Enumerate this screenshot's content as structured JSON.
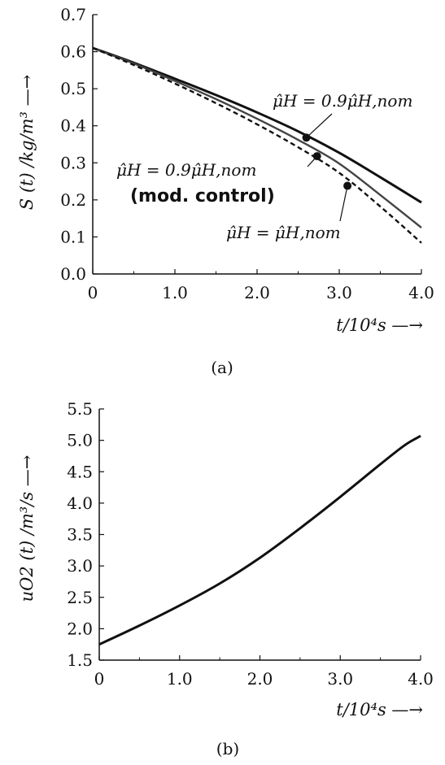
{
  "chart_data": [
    {
      "type": "line",
      "caption": "(a)",
      "ylabel": "S (t) /kg/m³ —→",
      "xlabel": "t/10⁴s —→",
      "xlim": [
        0,
        4.0
      ],
      "ylim": [
        0,
        0.7
      ],
      "x_ticks": [
        "0",
        "1.0",
        "2.0",
        "3.0",
        "4.0"
      ],
      "x_tick_values": [
        0,
        1.0,
        2.0,
        3.0,
        4.0
      ],
      "y_ticks": [
        "0.0",
        "0.1",
        "0.2",
        "0.3",
        "0.4",
        "0.5",
        "0.6",
        "0.7"
      ],
      "y_tick_values": [
        0.0,
        0.1,
        0.2,
        0.3,
        0.4,
        0.5,
        0.6,
        0.7
      ],
      "grid": false,
      "series": [
        {
          "style": "solid-thick",
          "color": "#111111",
          "x": [
            0,
            0.5,
            1.0,
            1.5,
            2.0,
            2.5,
            3.0,
            3.5,
            4.0
          ],
          "y": [
            0.61,
            0.57,
            0.527,
            0.483,
            0.436,
            0.385,
            0.327,
            0.261,
            0.193
          ]
        },
        {
          "style": "solid-gray",
          "color": "#444444",
          "x": [
            0,
            0.5,
            1.0,
            1.5,
            2.0,
            2.5,
            3.0,
            3.5,
            4.0
          ],
          "y": [
            0.61,
            0.568,
            0.521,
            0.472,
            0.419,
            0.362,
            0.298,
            0.213,
            0.125
          ]
        },
        {
          "style": "dashed",
          "color": "#111111",
          "x": [
            0,
            0.5,
            1.0,
            1.5,
            2.0,
            2.5,
            3.0,
            3.5,
            4.0
          ],
          "y": [
            0.61,
            0.564,
            0.514,
            0.461,
            0.404,
            0.342,
            0.273,
            0.182,
            0.084
          ]
        }
      ],
      "markers": [
        {
          "x": 2.6,
          "y": 0.368
        },
        {
          "x": 2.73,
          "y": 0.318
        },
        {
          "x": 3.1,
          "y": 0.238
        }
      ],
      "annotations": [
        {
          "text": "μ̂H = 0.9μ̂H,nom",
          "target": {
            "x": 2.6,
            "y": 0.368
          }
        },
        {
          "text": "μ̂H = 0.9μ̂H,nom",
          "text2": "(mod. control)",
          "target": {
            "x": 2.73,
            "y": 0.318
          }
        },
        {
          "text": "μ̂H = μ̂H,nom",
          "target": {
            "x": 3.1,
            "y": 0.238
          }
        }
      ]
    },
    {
      "type": "line",
      "caption": "(b)",
      "ylabel": "uO2 (t) /m³/s —→",
      "xlabel": "t/10⁴s —→",
      "xlim": [
        0,
        4.0
      ],
      "ylim": [
        1.5,
        5.5
      ],
      "x_ticks": [
        "0",
        "1.0",
        "2.0",
        "3.0",
        "4.0"
      ],
      "x_tick_values": [
        0,
        1.0,
        2.0,
        3.0,
        4.0
      ],
      "y_ticks": [
        "1.5",
        "2.0",
        "2.5",
        "3.0",
        "3.5",
        "4.0",
        "4.5",
        "5.0",
        "5.5"
      ],
      "y_tick_values": [
        1.5,
        2.0,
        2.5,
        3.0,
        3.5,
        4.0,
        4.5,
        5.0,
        5.5
      ],
      "grid": false,
      "series": [
        {
          "style": "solid-thick",
          "color": "#111111",
          "x": [
            0,
            0.5,
            1.0,
            1.5,
            2.0,
            2.5,
            3.0,
            3.5,
            3.8,
            4.0
          ],
          "y": [
            1.75,
            2.05,
            2.37,
            2.72,
            3.13,
            3.6,
            4.1,
            4.62,
            4.92,
            5.07
          ]
        }
      ]
    }
  ]
}
